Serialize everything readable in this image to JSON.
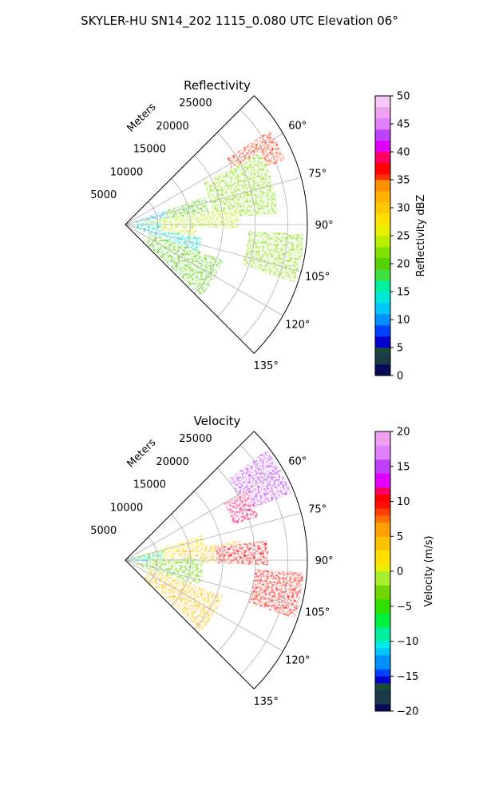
{
  "figure": {
    "suptitle": "SKYLER-HU  SN14_202  1115_0.080 UTC Elevation 06°"
  },
  "chart_data": [
    {
      "type": "heatmap",
      "projection": "polar-sector",
      "title": "Reflectivity",
      "range_label": "Meters",
      "range_ticks": [
        5000,
        10000,
        15000,
        20000,
        25000
      ],
      "range_tick_labels": [
        "5000",
        "10000",
        "15000",
        "20000",
        "25000"
      ],
      "rmax": 28000,
      "theta_min_deg": 45,
      "theta_max_deg": 135,
      "angle_ticks_deg": [
        60,
        75,
        90,
        105,
        120,
        135
      ],
      "angle_tick_labels": [
        "60°",
        "75°",
        "90°",
        "105°",
        "120°",
        "135°"
      ],
      "grid": true,
      "colorbar": {
        "label": "Reflectivity dBZ",
        "vmin": 0,
        "vmax": 50,
        "ticks": [
          0,
          5,
          10,
          15,
          20,
          25,
          30,
          35,
          40,
          45,
          50
        ],
        "tick_labels": [
          "0",
          "5",
          "10",
          "15",
          "20",
          "25",
          "30",
          "35",
          "40",
          "45",
          "50"
        ]
      },
      "echo_regions": [
        {
          "az": [
            57,
            68
          ],
          "range": [
            18500,
            26500
          ],
          "value": 35
        },
        {
          "az": [
            62,
            86
          ],
          "range": [
            13500,
            23500
          ],
          "value": 22
        },
        {
          "az": [
            71,
            84
          ],
          "range": [
            3000,
            13000
          ],
          "value": 19
        },
        {
          "az": [
            70,
            80
          ],
          "range": [
            1500,
            6500
          ],
          "value": 12
        },
        {
          "az": [
            82,
            92
          ],
          "range": [
            3000,
            17500
          ],
          "value": 24
        },
        {
          "az": [
            90,
            104
          ],
          "range": [
            500,
            11000
          ],
          "value": 23
        },
        {
          "az": [
            100,
            111
          ],
          "range": [
            1500,
            12000
          ],
          "value": 14
        },
        {
          "az": [
            93,
            109
          ],
          "range": [
            19000,
            27500
          ],
          "value": 21
        },
        {
          "az": [
            85,
            100
          ],
          "range": [
            500,
            5500
          ],
          "value": 15
        },
        {
          "az": [
            110,
            133
          ],
          "range": [
            4000,
            16000
          ],
          "value": 20
        }
      ]
    },
    {
      "type": "heatmap",
      "projection": "polar-sector",
      "title": "Velocity",
      "range_label": "Meters",
      "range_ticks": [
        5000,
        10000,
        15000,
        20000,
        25000
      ],
      "range_tick_labels": [
        "5000",
        "10000",
        "15000",
        "20000",
        "25000"
      ],
      "rmax": 28000,
      "theta_min_deg": 45,
      "theta_max_deg": 135,
      "angle_ticks_deg": [
        60,
        75,
        90,
        105,
        120,
        135
      ],
      "angle_tick_labels": [
        "60°",
        "75°",
        "90°",
        "105°",
        "120°",
        "135°"
      ],
      "grid": true,
      "colorbar": {
        "label": "Velocity (m/s)",
        "vmin": -20,
        "vmax": 20,
        "ticks": [
          -20,
          -15,
          -10,
          -5,
          0,
          5,
          10,
          15,
          20
        ],
        "tick_labels": [
          "−20",
          "−15",
          "−10",
          "−5",
          "0",
          "5",
          "10",
          "15",
          "20"
        ]
      },
      "echo_regions": [
        {
          "az": [
            52,
            68
          ],
          "range": [
            20000,
            27500
          ],
          "value": 14
        },
        {
          "az": [
            60,
            72
          ],
          "range": [
            17500,
            21500
          ],
          "value": 11
        },
        {
          "az": [
            72,
            87
          ],
          "range": [
            3000,
            12500
          ],
          "value": 1
        },
        {
          "az": [
            76,
            90
          ],
          "range": [
            1000,
            6000
          ],
          "value": -7
        },
        {
          "az": [
            80,
            92
          ],
          "range": [
            8000,
            18000
          ],
          "value": 3
        },
        {
          "az": [
            82,
            92
          ],
          "range": [
            14000,
            22000
          ],
          "value": 10
        },
        {
          "az": [
            88,
            108
          ],
          "range": [
            500,
            12000
          ],
          "value": -4
        },
        {
          "az": [
            100,
            113
          ],
          "range": [
            1500,
            11000
          ],
          "value": -3
        },
        {
          "az": [
            94,
            109
          ],
          "range": [
            20000,
            27500
          ],
          "value": 9
        },
        {
          "az": [
            86,
            98
          ],
          "range": [
            500,
            3500
          ],
          "value": -12
        },
        {
          "az": [
            110,
            133
          ],
          "range": [
            4000,
            16000
          ],
          "value": 4
        }
      ]
    }
  ]
}
